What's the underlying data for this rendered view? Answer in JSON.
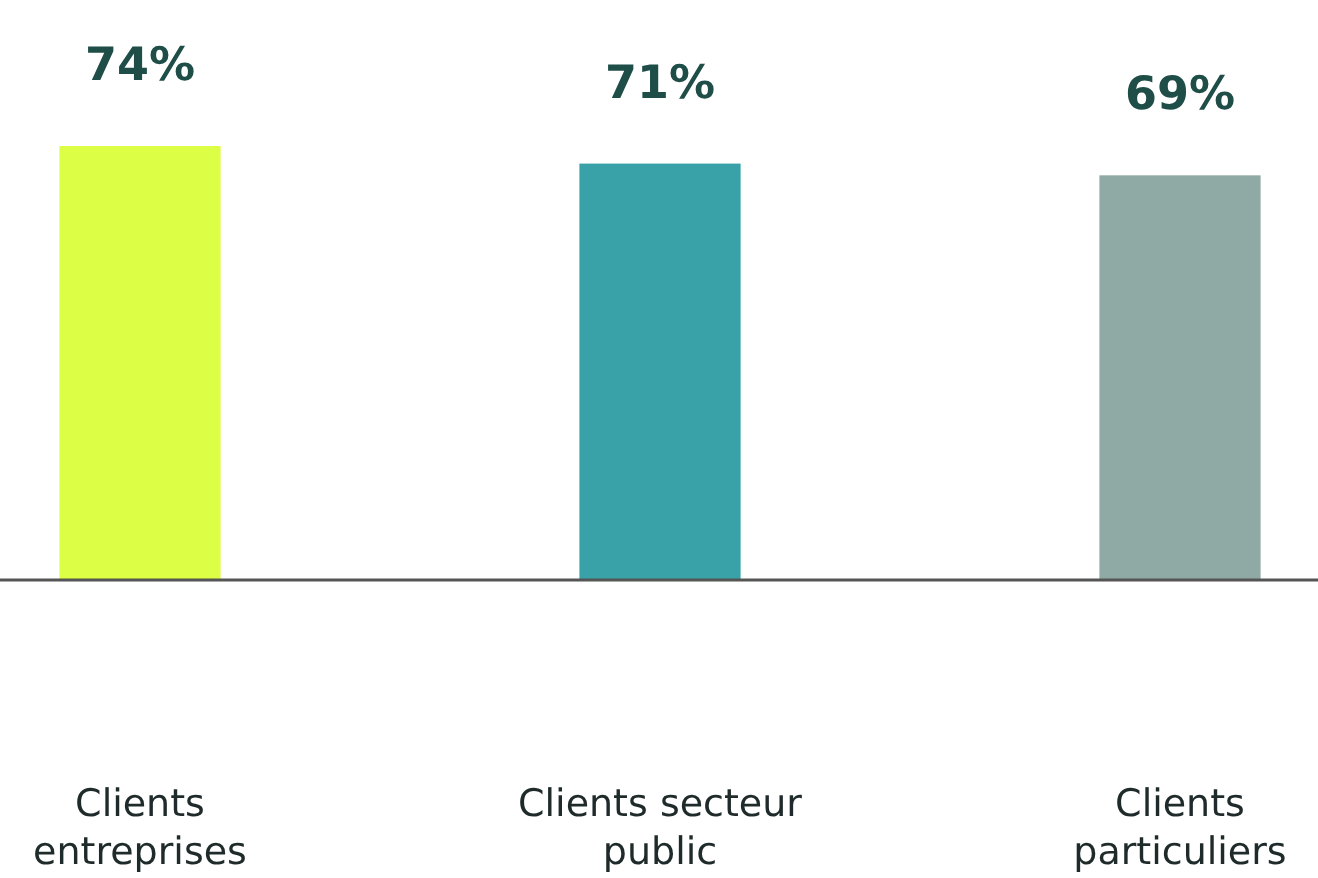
{
  "chart_data": {
    "type": "bar",
    "categories": [
      "Clients entreprises",
      "Clients secteur public",
      "Clients particuliers"
    ],
    "values": [
      74,
      71,
      69
    ],
    "colors": [
      "#dcff45",
      "#38a2a8",
      "#8fa9a4"
    ],
    "value_labels": [
      "74%",
      "71%",
      "69%"
    ],
    "tick_labels": "x"
  }
}
